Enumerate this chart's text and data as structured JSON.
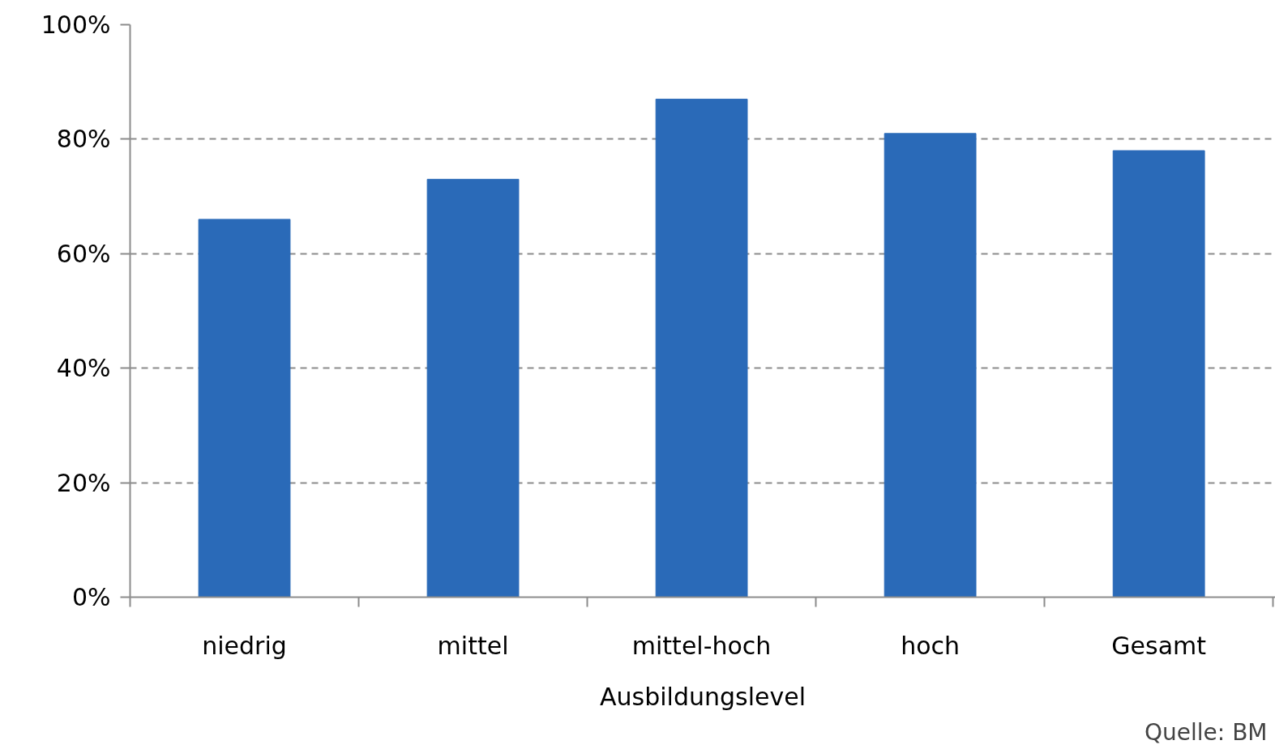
{
  "chart_data": {
    "type": "bar",
    "categories": [
      "niedrig",
      "mittel",
      "mittel-hoch",
      "hoch",
      "Gesamt"
    ],
    "values": [
      66,
      73,
      87,
      81,
      78
    ],
    "color": "#2a6ab8",
    "xlabel": "Ausbildungslevel",
    "ylim": [
      0,
      100
    ],
    "yticks": [
      {
        "value": 0,
        "label": "0%"
      },
      {
        "value": 20,
        "label": "20%"
      },
      {
        "value": 40,
        "label": "40%"
      },
      {
        "value": 60,
        "label": "60%"
      },
      {
        "value": 80,
        "label": "80%"
      },
      {
        "value": 100,
        "label": "100%"
      }
    ],
    "grid": "y",
    "annotations": [
      "Quelle: BM"
    ]
  }
}
